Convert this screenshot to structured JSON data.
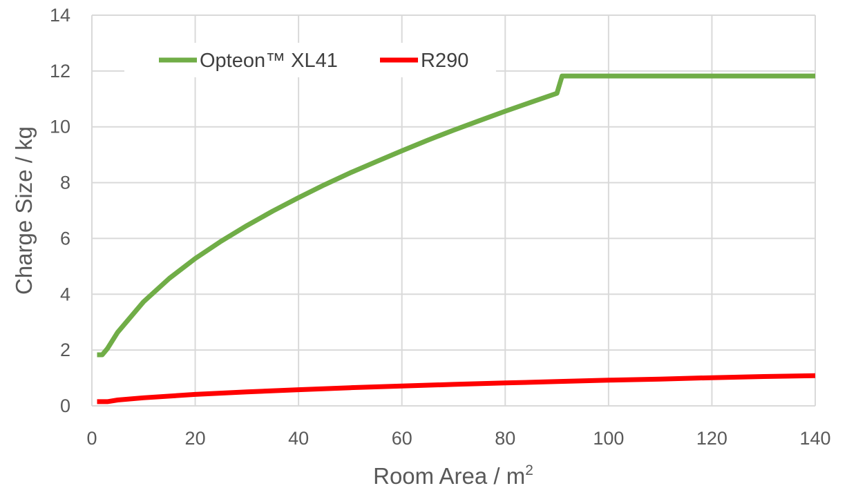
{
  "chart_data": {
    "type": "line",
    "xlabel": "Room Area / m",
    "xlabel_superscript": "2",
    "ylabel": "Charge Size / kg",
    "xlim": [
      0,
      140
    ],
    "ylim": [
      0,
      14
    ],
    "x_ticks": [
      "0",
      "20",
      "40",
      "60",
      "80",
      "100",
      "120",
      "140"
    ],
    "y_ticks": [
      "0",
      "2",
      "4",
      "6",
      "8",
      "10",
      "12",
      "14"
    ],
    "grid": true,
    "legend_position": "top-left",
    "series": [
      {
        "name": "Opteon™ XL41",
        "color": "#70AD47",
        "points": [
          [
            1,
            1.83
          ],
          [
            2,
            1.83
          ],
          [
            3,
            2.05
          ],
          [
            5,
            2.64
          ],
          [
            10,
            3.73
          ],
          [
            15,
            4.57
          ],
          [
            20,
            5.28
          ],
          [
            25,
            5.9
          ],
          [
            30,
            6.46
          ],
          [
            35,
            6.98
          ],
          [
            40,
            7.46
          ],
          [
            45,
            7.92
          ],
          [
            50,
            8.35
          ],
          [
            55,
            8.75
          ],
          [
            60,
            9.14
          ],
          [
            65,
            9.52
          ],
          [
            70,
            9.88
          ],
          [
            75,
            10.22
          ],
          [
            80,
            10.56
          ],
          [
            85,
            10.88
          ],
          [
            90,
            11.2
          ],
          [
            91,
            11.82
          ],
          [
            100,
            11.82
          ],
          [
            110,
            11.82
          ],
          [
            120,
            11.82
          ],
          [
            130,
            11.82
          ],
          [
            140,
            11.82
          ]
        ]
      },
      {
        "name": "R290",
        "color": "#FF0000",
        "points": [
          [
            1,
            0.15
          ],
          [
            3,
            0.15
          ],
          [
            5,
            0.21
          ],
          [
            10,
            0.29
          ],
          [
            20,
            0.41
          ],
          [
            30,
            0.5
          ],
          [
            40,
            0.58
          ],
          [
            50,
            0.65
          ],
          [
            60,
            0.71
          ],
          [
            70,
            0.77
          ],
          [
            80,
            0.82
          ],
          [
            90,
            0.87
          ],
          [
            100,
            0.92
          ],
          [
            110,
            0.96
          ],
          [
            120,
            1.01
          ],
          [
            130,
            1.05
          ],
          [
            140,
            1.08
          ]
        ]
      }
    ]
  }
}
